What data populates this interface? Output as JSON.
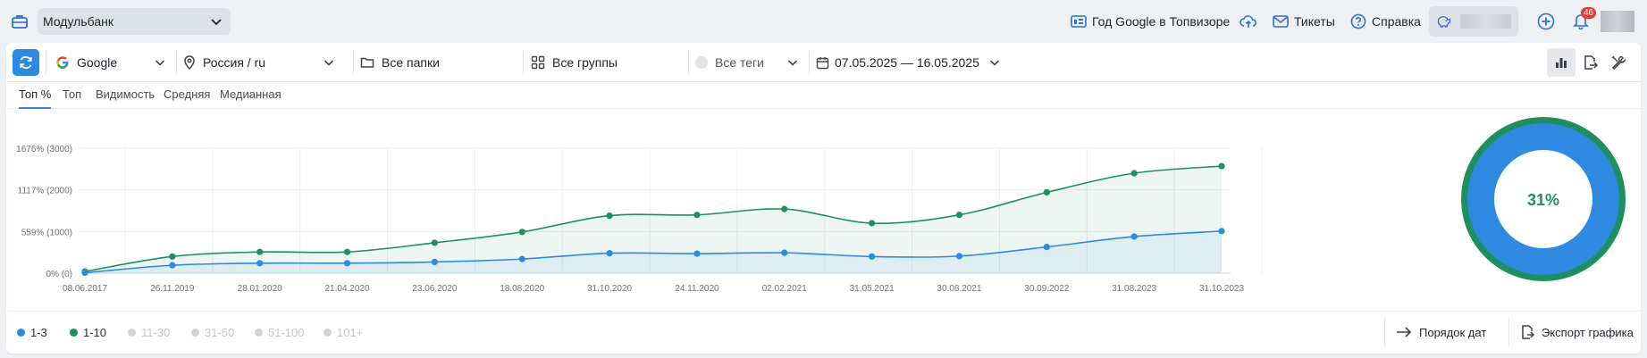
{
  "header": {
    "project": "Модульбанк",
    "links": {
      "year": "Год Google в Топвизоре",
      "tickets": "Тикеты",
      "help": "Справка"
    },
    "notifications": "46"
  },
  "filters": {
    "engine": "Google",
    "region": "Россия / ru",
    "folders": "Все папки",
    "groups": "Все группы",
    "tags": "Все теги",
    "dates": "07.05.2025 — 16.05.2025"
  },
  "tabs": [
    "Топ %",
    "Топ",
    "Видимость",
    "Средняя",
    "Медианная"
  ],
  "chart_data": {
    "type": "area",
    "x": [
      "08.06.2017",
      "26.11.2019",
      "28.01.2020",
      "21.04.2020",
      "23.06.2020",
      "18.08.2020",
      "31.10.2020",
      "24.11.2020",
      "02.02.2021",
      "31.05.2021",
      "30.08.2021",
      "30.09.2022",
      "31.08.2023",
      "31.10.2023"
    ],
    "y_ticks": [
      "1676% (3000)",
      "1117% (2000)",
      "559% (1000)",
      "0% (0)"
    ],
    "ylim": [
      0,
      3000
    ],
    "grid": true,
    "series": [
      {
        "name": "1-10",
        "color": "#1f8f5f",
        "values": [
          40,
          400,
          510,
          510,
          730,
          990,
          1380,
          1400,
          1540,
          1200,
          1400,
          1940,
          2400,
          2570
        ]
      },
      {
        "name": "1-3",
        "color": "#2d8ae0",
        "values": [
          10,
          190,
          240,
          240,
          270,
          340,
          480,
          470,
          490,
          400,
          410,
          630,
          880,
          1010
        ]
      }
    ]
  },
  "donut": {
    "value": "31%",
    "percent": 31
  },
  "legend": [
    {
      "label": "1-3",
      "color": "#2d8ae0",
      "active": true
    },
    {
      "label": "1-10",
      "color": "#1f8f5f",
      "active": true
    },
    {
      "label": "11-30",
      "color": "#d0d3d9",
      "active": false
    },
    {
      "label": "31-50",
      "color": "#d0d3d9",
      "active": false
    },
    {
      "label": "51-100",
      "color": "#d0d3d9",
      "active": false
    },
    {
      "label": "101+",
      "color": "#d0d3d9",
      "active": false
    }
  ],
  "actions": {
    "date_order": "Порядок дат",
    "export": "Экспорт графика"
  }
}
